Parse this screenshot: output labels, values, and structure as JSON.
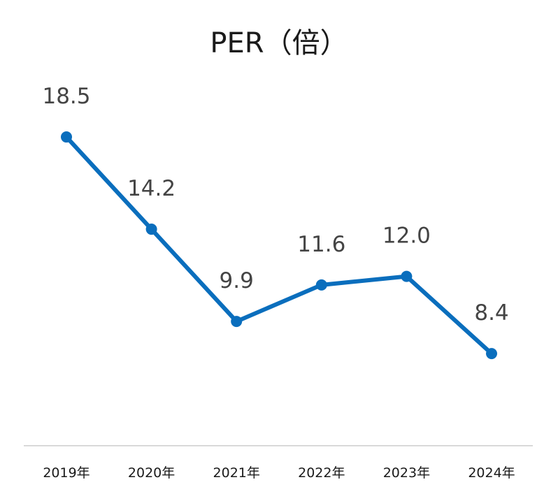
{
  "chart_data": {
    "type": "line",
    "title": "PER（倍）",
    "categories": [
      "2019年",
      "2020年",
      "2021年",
      "2022年",
      "2023年",
      "2024年"
    ],
    "series": [
      {
        "values": [
          18.5,
          14.2,
          9.9,
          11.6,
          12.0,
          8.4
        ],
        "labels": [
          "18.5",
          "14.2",
          "9.9",
          "11.6",
          "12.0",
          "8.4"
        ]
      }
    ],
    "ylim": [
      3,
      22
    ],
    "grid": false,
    "legend": "none",
    "line_color": "#0a6ebd",
    "axis_color": "#d9d9d9"
  }
}
